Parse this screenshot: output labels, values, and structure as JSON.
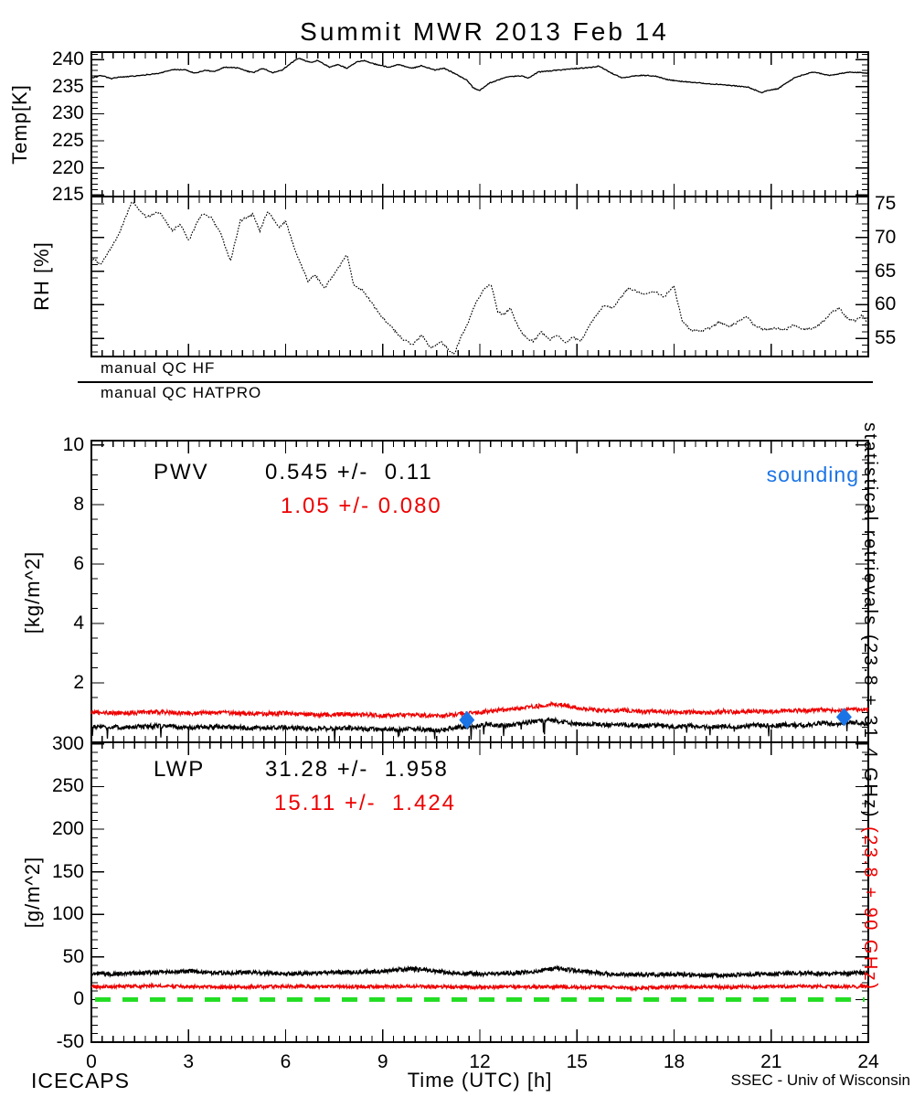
{
  "title": "Summit MWR 2013 Feb 14",
  "footer": {
    "left": "ICECAPS",
    "right": "SSEC - Univ of Wisconsin"
  },
  "qc": {
    "hf": "manual QC HF",
    "hatpro": "manual QC HATPRO"
  },
  "right_label": {
    "black": "statistical retrievals (23.8 + 31.4 GHz) ",
    "red": "(23.8 + 90 GHz)"
  },
  "annotations": {
    "pwv": {
      "label": "PWV",
      "black": "0.545 +/-  0.11",
      "red": "1.05 +/- 0.080",
      "sounding": "sounding"
    },
    "lwp": {
      "label": "LWP",
      "black": "31.28 +/-  1.958",
      "red": "15.11 +/-  1.424"
    }
  },
  "colors": {
    "black": "#000000",
    "red": "#ee0000",
    "blue": "#1b74e6",
    "green": "#22dd22"
  },
  "chart_data": {
    "x_axis": {
      "label": "Time (UTC) [h]",
      "xlim": [
        0,
        24
      ],
      "xticks": [
        0,
        3,
        6,
        9,
        12,
        15,
        18,
        21,
        24
      ],
      "xminor": 0.3333
    },
    "panels": [
      {
        "id": "temp",
        "type": "line",
        "ylabel": "Temp[K]",
        "ylim": [
          214.7,
          241.4
        ],
        "yticks": [
          215,
          220,
          225,
          230,
          235,
          240
        ],
        "yminor": 1,
        "yticks_side": "left",
        "series": [
          {
            "name": "brightness-temperature",
            "color": "#000000",
            "width": 1.3,
            "noise": 0.08,
            "dash": null,
            "x": [
              0,
              0.3,
              0.6,
              0.9,
              1.4,
              2.1,
              2.5,
              2.9,
              3.2,
              3.5,
              3.8,
              4.1,
              4.5,
              4.8,
              5.0,
              5.3,
              5.6,
              5.9,
              6.2,
              6.4,
              6.6,
              6.8,
              7.0,
              7.35,
              7.6,
              7.9,
              8.2,
              8.45,
              8.8,
              9.2,
              9.5,
              9.9,
              10.2,
              10.6,
              10.9,
              11.3,
              11.6,
              11.8,
              12.0,
              12.3,
              12.6,
              12.9,
              13.3,
              13.5,
              13.8,
              14.3,
              14.8,
              15.3,
              15.7,
              16.0,
              16.4,
              16.7,
              17.0,
              17.4,
              17.8,
              18.2,
              18.6,
              19.2,
              19.8,
              20.3,
              20.7,
              20.9,
              21.2,
              21.7,
              22.1,
              22.3,
              22.8,
              23.1,
              23.5,
              24.0
            ],
            "y": [
              236.6,
              237.1,
              236.5,
              236.8,
              237.0,
              237.5,
              238.2,
              238.1,
              237.5,
              238.0,
              237.8,
              238.6,
              238.5,
              237.9,
              237.6,
              238.4,
              237.6,
              238.1,
              239.5,
              240.3,
              239.8,
              239.5,
              239.9,
              238.6,
              239.1,
              238.4,
              239.6,
              239.8,
              239.1,
              238.6,
              239.1,
              238.4,
              238.9,
              238.1,
              238.4,
              237.2,
              236.2,
              234.8,
              234.3,
              235.7,
              236.3,
              236.9,
              237.0,
              236.6,
              237.7,
              238.0,
              238.3,
              238.5,
              238.8,
              237.7,
              236.6,
              236.9,
              237.1,
              237.0,
              236.3,
              236.0,
              235.8,
              235.5,
              235.2,
              234.9,
              233.9,
              234.3,
              234.6,
              236.6,
              237.4,
              237.7,
              237.1,
              237.4,
              237.7,
              237.5
            ]
          }
        ]
      },
      {
        "id": "rh",
        "type": "line",
        "ylabel": "RH [%]",
        "ylim": [
          52.3,
          76.1
        ],
        "yticks": [
          55,
          60,
          65,
          70,
          75
        ],
        "yminor": 1,
        "yticks_side": "right",
        "series": [
          {
            "name": "relative-humidity",
            "color": "#000000",
            "width": 1.2,
            "noise": 0.15,
            "dash": "1.6 1.6",
            "x": [
              0,
              0.3,
              0.8,
              1.25,
              1.7,
              2.1,
              2.5,
              2.75,
              3.0,
              3.4,
              3.7,
              4.0,
              4.3,
              4.6,
              5.0,
              5.2,
              5.45,
              5.8,
              6.0,
              6.3,
              6.7,
              6.9,
              7.2,
              7.5,
              7.9,
              8.1,
              8.4,
              8.7,
              9.0,
              9.4,
              9.6,
              9.9,
              10.2,
              10.5,
              10.8,
              11.2,
              11.4,
              11.6,
              11.9,
              12.15,
              12.35,
              12.55,
              12.75,
              12.95,
              13.2,
              13.45,
              13.65,
              13.9,
              14.15,
              14.4,
              14.65,
              14.9,
              15.1,
              15.35,
              15.6,
              15.85,
              16.1,
              16.35,
              16.6,
              16.85,
              17.1,
              17.4,
              17.7,
              18.0,
              18.25,
              18.5,
              18.8,
              19.1,
              19.4,
              19.7,
              20.0,
              20.25,
              20.5,
              20.8,
              21.1,
              21.4,
              21.7,
              22.0,
              22.3,
              22.6,
              22.9,
              23.1,
              23.35,
              23.6,
              23.8,
              24.0
            ],
            "y": [
              67,
              66,
              70,
              75.3,
              73,
              73.8,
              71,
              72,
              69.5,
              73.5,
              73,
              70.5,
              66.5,
              72.5,
              73.5,
              71,
              74,
              71.5,
              72.5,
              68,
              63.5,
              64.5,
              62.5,
              64.5,
              67.5,
              63,
              62,
              60,
              58,
              56,
              55,
              54,
              55.5,
              53.5,
              54.5,
              52.5,
              55,
              57,
              60.5,
              62.5,
              63,
              59,
              58.5,
              59.5,
              56.5,
              55,
              54.5,
              56,
              54.8,
              55.5,
              54.3,
              55.2,
              54.5,
              56.5,
              58.5,
              60,
              59.5,
              61,
              62.5,
              62,
              61.5,
              62,
              61.2,
              62.8,
              57.5,
              56.3,
              56,
              56.5,
              57.5,
              56.8,
              57.5,
              58.3,
              56.8,
              56.3,
              56.5,
              56.2,
              57,
              56.3,
              56.5,
              57.5,
              59,
              59.5,
              58,
              57.5,
              58.5,
              57.2
            ]
          }
        ]
      },
      {
        "id": "pwv",
        "type": "line",
        "ylabel": "[kg/m^2]",
        "ylim": [
          0,
          10.15
        ],
        "yticks": [
          2,
          4,
          6,
          8,
          10
        ],
        "yminor": 0.5,
        "yticks_side": "left",
        "series": [
          {
            "name": "pwv-hf",
            "color": "#000000",
            "width": 1.3,
            "noise": 0.075,
            "dash": null,
            "spikes": true,
            "x": [
              0,
              1,
              2,
              3,
              4,
              5,
              6,
              7,
              8,
              9,
              10,
              10.8,
              11.3,
              11.8,
              12.3,
              12.8,
              13.3,
              13.8,
              14.2,
              14.6,
              15,
              15.5,
              16,
              16.5,
              17,
              17.5,
              18,
              18.5,
              19,
              19.5,
              20,
              20.5,
              21,
              21.5,
              22,
              22.5,
              23,
              23.5,
              24
            ],
            "y": [
              0.52,
              0.5,
              0.55,
              0.5,
              0.52,
              0.48,
              0.5,
              0.45,
              0.48,
              0.42,
              0.45,
              0.4,
              0.5,
              0.55,
              0.6,
              0.55,
              0.65,
              0.7,
              0.75,
              0.68,
              0.6,
              0.62,
              0.58,
              0.6,
              0.55,
              0.58,
              0.52,
              0.55,
              0.5,
              0.55,
              0.52,
              0.58,
              0.55,
              0.6,
              0.55,
              0.65,
              0.6,
              0.68,
              0.62
            ]
          },
          {
            "name": "pwv-hatpro",
            "color": "#ee0000",
            "width": 1.3,
            "noise": 0.07,
            "dash": null,
            "x": [
              0,
              1,
              2,
              3,
              4,
              5,
              6,
              7,
              8,
              9,
              10,
              10.8,
              11.3,
              11.8,
              12.3,
              12.8,
              13.3,
              13.8,
              14.2,
              14.6,
              15,
              15.5,
              16,
              16.5,
              17,
              17.5,
              18,
              18.5,
              19,
              19.5,
              20,
              20.5,
              21,
              21.5,
              22,
              22.5,
              23,
              23.5,
              24
            ],
            "y": [
              1.0,
              0.98,
              1.02,
              0.98,
              1.0,
              0.95,
              0.98,
              0.92,
              0.95,
              0.9,
              0.92,
              0.88,
              0.95,
              1.0,
              1.05,
              1.1,
              1.15,
              1.22,
              1.28,
              1.25,
              1.15,
              1.1,
              1.05,
              1.08,
              1.02,
              1.05,
              1.0,
              1.02,
              0.98,
              1.05,
              1.0,
              1.05,
              1.02,
              1.08,
              1.05,
              1.1,
              1.05,
              1.12,
              1.08
            ]
          }
        ],
        "scatter": {
          "name": "sounding",
          "color": "#1b74e6",
          "points": [
            [
              11.6,
              0.75
            ],
            [
              23.25,
              0.85
            ]
          ]
        }
      },
      {
        "id": "lwp",
        "type": "line",
        "ylabel": "[g/m^2]",
        "ylim": [
          -50,
          302
        ],
        "yticks": [
          -50,
          0,
          50,
          100,
          150,
          200,
          250,
          300
        ],
        "yminor": 10,
        "yticks_side": "left",
        "series": [
          {
            "name": "lwp-hf",
            "color": "#000000",
            "width": 1.4,
            "noise": 2.4,
            "dash": null,
            "x": [
              0,
              1,
              2,
              3,
              4,
              5,
              6,
              7,
              8,
              9,
              9.8,
              10.5,
              11,
              12,
              13,
              13.8,
              14.3,
              15,
              16,
              17,
              18,
              19,
              20,
              21,
              22,
              23,
              24
            ],
            "y": [
              31,
              30,
              32,
              33,
              31,
              32,
              30,
              31,
              32,
              33,
              36,
              34,
              32,
              30,
              31,
              33,
              37,
              34,
              30,
              29,
              30,
              28,
              29,
              30,
              31,
              30,
              32
            ]
          },
          {
            "name": "lwp-hatpro",
            "color": "#ee0000",
            "width": 1.4,
            "noise": 1.9,
            "dash": null,
            "x": [
              0,
              2,
              4,
              6,
              8,
              10,
              12,
              14,
              16,
              16.8,
              18,
              20,
              22,
              24
            ],
            "y": [
              15,
              16,
              14.5,
              15.5,
              15,
              15.5,
              14.5,
              15,
              14.5,
              13,
              15,
              14.5,
              15.5,
              15
            ]
          }
        ],
        "baseline": {
          "name": "zero-line",
          "value": 0,
          "color": "#22dd22",
          "width": 5,
          "dash": "17 13"
        }
      }
    ]
  }
}
